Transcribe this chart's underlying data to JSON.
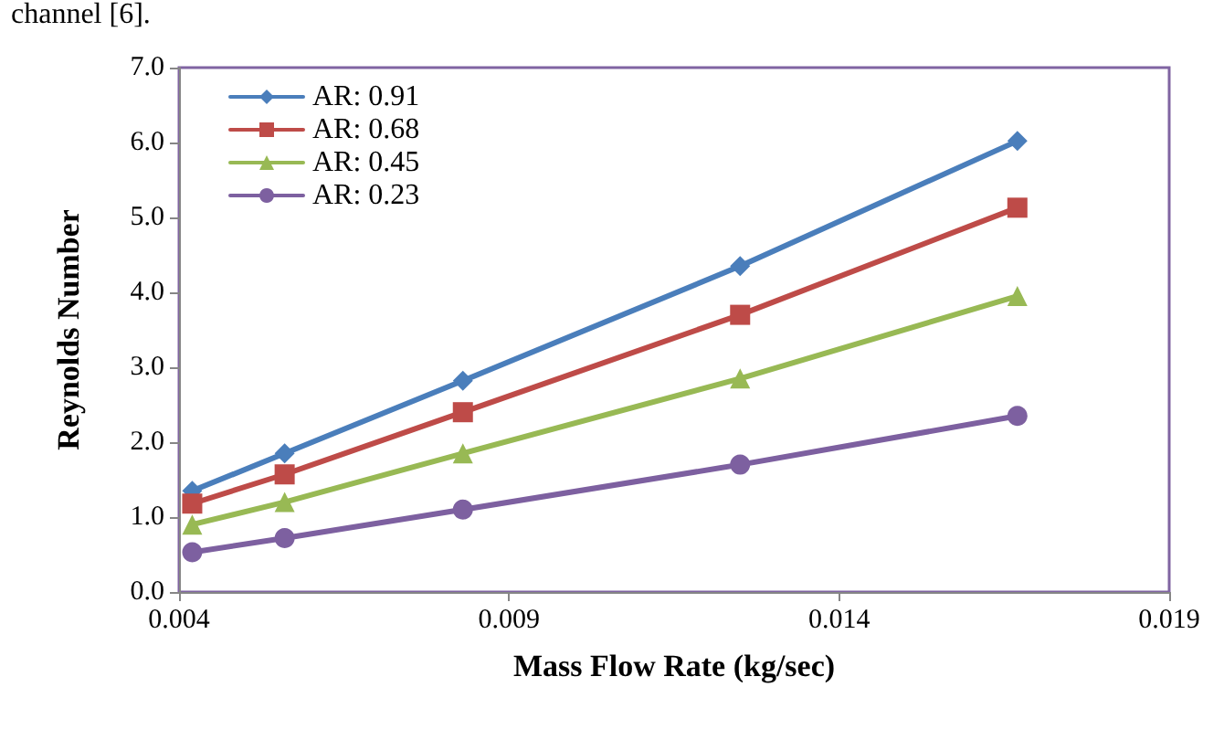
{
  "chart_data": {
    "type": "line",
    "xlabel": "Mass Flow Rate (kg/sec)",
    "ylabel": "Reynolds Number",
    "annotations": [
      "channel [6]."
    ],
    "x": [
      0.0042,
      0.0056,
      0.0083,
      0.0125,
      0.0167
    ],
    "series": [
      {
        "name": "AR: 0.91",
        "color": "#4a7ebb",
        "marker": "diamond",
        "values": [
          1.35,
          1.85,
          2.82,
          4.35,
          6.02
        ]
      },
      {
        "name": "AR: 0.68",
        "color": "#be4b48",
        "marker": "square",
        "values": [
          1.18,
          1.57,
          2.4,
          3.7,
          5.13
        ]
      },
      {
        "name": "AR: 0.45",
        "color": "#98b954",
        "marker": "triangle",
        "values": [
          0.9,
          1.2,
          1.85,
          2.85,
          3.95
        ]
      },
      {
        "name": "AR: 0.23",
        "color": "#7d60a0",
        "marker": "circle",
        "values": [
          0.53,
          0.72,
          1.1,
          1.7,
          2.35
        ]
      }
    ],
    "xlim": [
      0.004,
      0.019
    ],
    "xticks": [
      0.004,
      0.009,
      0.014,
      0.019
    ],
    "ylim": [
      0,
      7
    ],
    "yticks": [
      {
        "value": 0,
        "label": "0.0"
      },
      {
        "value": 1,
        "label": "1.0"
      },
      {
        "value": 2,
        "label": "2.0"
      },
      {
        "value": 3,
        "label": "3.0"
      },
      {
        "value": 4,
        "label": "4.0"
      },
      {
        "value": 5,
        "label": "5.0"
      },
      {
        "value": 6,
        "label": "6.0"
      },
      {
        "value": 7,
        "label": "7.0"
      }
    ],
    "grid": false,
    "legend": "top left",
    "line_style": "solid"
  }
}
